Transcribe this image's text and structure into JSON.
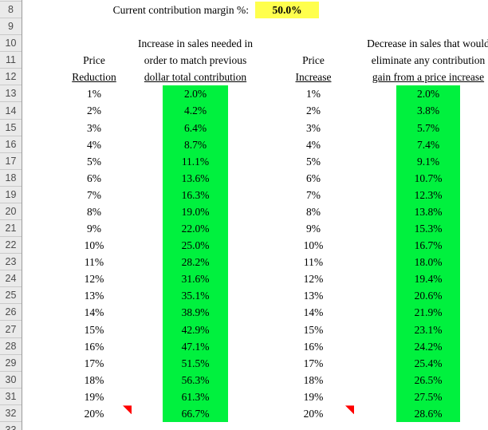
{
  "colors": {
    "green_fill": "#00f13e",
    "yellow_fill": "#ffff4d",
    "comment_red": "#ff0000",
    "gutter_bg": "#eaeaea"
  },
  "gutter": {
    "row_numbers": [
      "8",
      "9",
      "10",
      "11",
      "12",
      "13",
      "14",
      "15",
      "16",
      "17",
      "18",
      "19",
      "20",
      "21",
      "22",
      "23",
      "24",
      "25",
      "26",
      "27",
      "28",
      "29",
      "30",
      "31",
      "32",
      "33"
    ]
  },
  "margin_input": {
    "label": "Current contribution margin %:",
    "value": "50.0%"
  },
  "headers": {
    "left_price_line1": "Price",
    "left_price_line2": "Reduction",
    "left_result_line1": "Increase in sales needed in",
    "left_result_line2": "order to match previous",
    "left_result_line3": "dollar total contribution",
    "right_price_line1": "Price",
    "right_price_line2": "Increase",
    "right_result_line1": "Decrease in sales that would",
    "right_result_line2": "eliminate any contribution",
    "right_result_line3": "gain from a price increase"
  },
  "table": {
    "rows": [
      {
        "row": "13",
        "price_reduction": "1%",
        "sales_increase_needed": "2.0%",
        "price_increase": "1%",
        "sales_decrease_allowed": "2.0%",
        "has_comment": false
      },
      {
        "row": "14",
        "price_reduction": "2%",
        "sales_increase_needed": "4.2%",
        "price_increase": "2%",
        "sales_decrease_allowed": "3.8%",
        "has_comment": false
      },
      {
        "row": "15",
        "price_reduction": "3%",
        "sales_increase_needed": "6.4%",
        "price_increase": "3%",
        "sales_decrease_allowed": "5.7%",
        "has_comment": false
      },
      {
        "row": "16",
        "price_reduction": "4%",
        "sales_increase_needed": "8.7%",
        "price_increase": "4%",
        "sales_decrease_allowed": "7.4%",
        "has_comment": false
      },
      {
        "row": "17",
        "price_reduction": "5%",
        "sales_increase_needed": "11.1%",
        "price_increase": "5%",
        "sales_decrease_allowed": "9.1%",
        "has_comment": false
      },
      {
        "row": "18",
        "price_reduction": "6%",
        "sales_increase_needed": "13.6%",
        "price_increase": "6%",
        "sales_decrease_allowed": "10.7%",
        "has_comment": false
      },
      {
        "row": "19",
        "price_reduction": "7%",
        "sales_increase_needed": "16.3%",
        "price_increase": "7%",
        "sales_decrease_allowed": "12.3%",
        "has_comment": false
      },
      {
        "row": "20",
        "price_reduction": "8%",
        "sales_increase_needed": "19.0%",
        "price_increase": "8%",
        "sales_decrease_allowed": "13.8%",
        "has_comment": false
      },
      {
        "row": "21",
        "price_reduction": "9%",
        "sales_increase_needed": "22.0%",
        "price_increase": "9%",
        "sales_decrease_allowed": "15.3%",
        "has_comment": false
      },
      {
        "row": "22",
        "price_reduction": "10%",
        "sales_increase_needed": "25.0%",
        "price_increase": "10%",
        "sales_decrease_allowed": "16.7%",
        "has_comment": false
      },
      {
        "row": "23",
        "price_reduction": "11%",
        "sales_increase_needed": "28.2%",
        "price_increase": "11%",
        "sales_decrease_allowed": "18.0%",
        "has_comment": false
      },
      {
        "row": "24",
        "price_reduction": "12%",
        "sales_increase_needed": "31.6%",
        "price_increase": "12%",
        "sales_decrease_allowed": "19.4%",
        "has_comment": false
      },
      {
        "row": "25",
        "price_reduction": "13%",
        "sales_increase_needed": "35.1%",
        "price_increase": "13%",
        "sales_decrease_allowed": "20.6%",
        "has_comment": false
      },
      {
        "row": "26",
        "price_reduction": "14%",
        "sales_increase_needed": "38.9%",
        "price_increase": "14%",
        "sales_decrease_allowed": "21.9%",
        "has_comment": false
      },
      {
        "row": "27",
        "price_reduction": "15%",
        "sales_increase_needed": "42.9%",
        "price_increase": "15%",
        "sales_decrease_allowed": "23.1%",
        "has_comment": false
      },
      {
        "row": "28",
        "price_reduction": "16%",
        "sales_increase_needed": "47.1%",
        "price_increase": "16%",
        "sales_decrease_allowed": "24.2%",
        "has_comment": false
      },
      {
        "row": "29",
        "price_reduction": "17%",
        "sales_increase_needed": "51.5%",
        "price_increase": "17%",
        "sales_decrease_allowed": "25.4%",
        "has_comment": false
      },
      {
        "row": "30",
        "price_reduction": "18%",
        "sales_increase_needed": "56.3%",
        "price_increase": "18%",
        "sales_decrease_allowed": "26.5%",
        "has_comment": false
      },
      {
        "row": "31",
        "price_reduction": "19%",
        "sales_increase_needed": "61.3%",
        "price_increase": "19%",
        "sales_decrease_allowed": "27.5%",
        "has_comment": false
      },
      {
        "row": "32",
        "price_reduction": "20%",
        "sales_increase_needed": "66.7%",
        "price_increase": "20%",
        "sales_decrease_allowed": "28.6%",
        "has_comment": true
      }
    ]
  }
}
